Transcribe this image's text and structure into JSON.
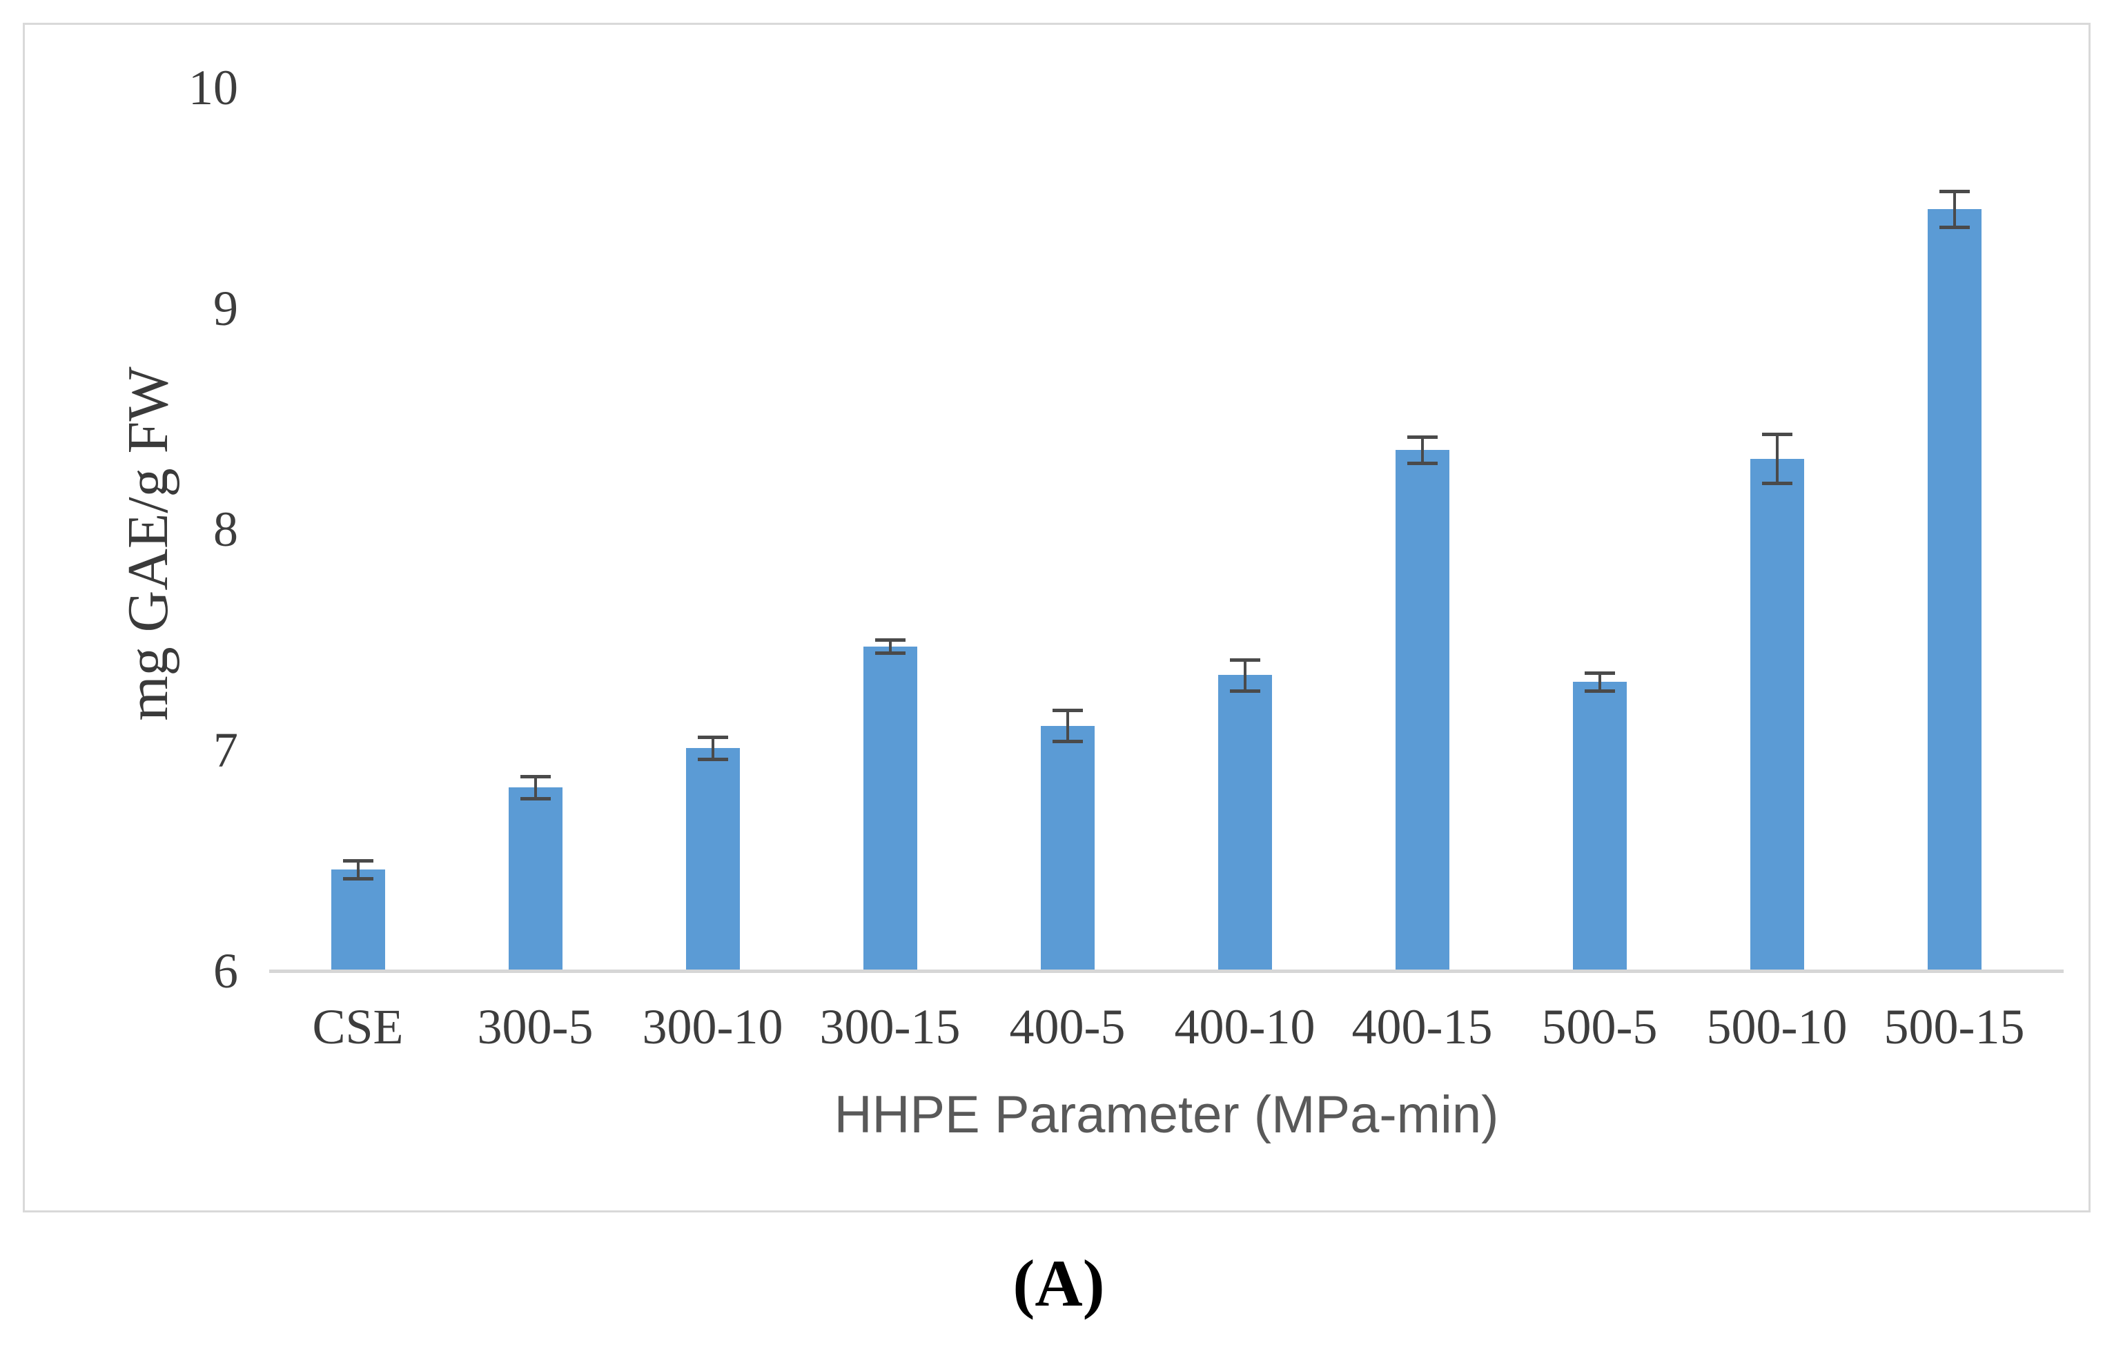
{
  "figure_label": "(A)",
  "chart_data": {
    "type": "bar",
    "title": "",
    "categories": [
      "CSE",
      "300-5",
      "300-10",
      "300-15",
      "400-5",
      "400-10",
      "400-15",
      "500-5",
      "500-10",
      "500-15"
    ],
    "values": [
      6.46,
      6.83,
      7.01,
      7.47,
      7.11,
      7.34,
      8.36,
      7.31,
      8.32,
      9.45
    ],
    "error_bars": [
      0.04,
      0.05,
      0.05,
      0.03,
      0.07,
      0.07,
      0.06,
      0.04,
      0.11,
      0.08
    ],
    "xlabel": "HHPE Parameter (MPa-min)",
    "ylabel": "mg GAE/g FW",
    "ylim": [
      6,
      10
    ],
    "yticks": [
      "6",
      "7",
      "8",
      "9",
      "10"
    ],
    "grid": false,
    "legend": false,
    "colors": {
      "bar": "#5B9BD5",
      "error_bar": "#4a4a4a",
      "axis_line": "#d6d6d6",
      "frame_border": "#d9d9d9",
      "tick_label": "#3d3d3d",
      "x_axis_title": "#595959",
      "y_axis_title": "#3a3a3a",
      "background": "#ffffff"
    }
  }
}
